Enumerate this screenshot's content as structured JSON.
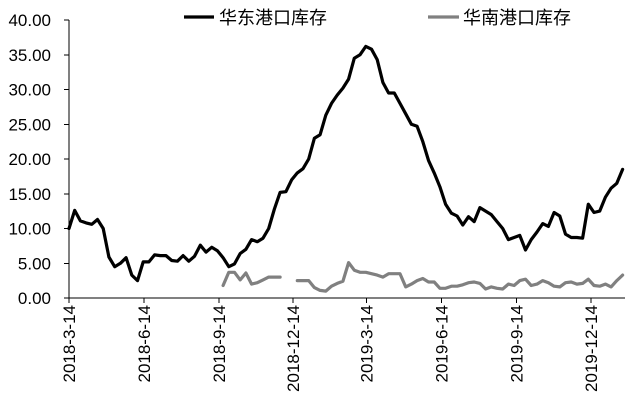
{
  "chart_data": {
    "type": "line",
    "x": [
      "2018-03-14",
      "2018-03-21",
      "2018-03-28",
      "2018-04-04",
      "2018-04-11",
      "2018-04-18",
      "2018-04-25",
      "2018-05-02",
      "2018-05-09",
      "2018-05-16",
      "2018-05-23",
      "2018-05-30",
      "2018-06-06",
      "2018-06-13",
      "2018-06-20",
      "2018-06-27",
      "2018-07-04",
      "2018-07-11",
      "2018-07-18",
      "2018-07-25",
      "2018-08-01",
      "2018-08-08",
      "2018-08-15",
      "2018-08-22",
      "2018-08-29",
      "2018-09-05",
      "2018-09-12",
      "2018-09-19",
      "2018-09-26",
      "2018-10-03",
      "2018-10-10",
      "2018-10-17",
      "2018-10-24",
      "2018-10-31",
      "2018-11-07",
      "2018-11-14",
      "2018-11-21",
      "2018-11-28",
      "2018-12-05",
      "2018-12-12",
      "2018-12-19",
      "2018-12-26",
      "2019-01-02",
      "2019-01-09",
      "2019-01-16",
      "2019-01-23",
      "2019-01-30",
      "2019-02-06",
      "2019-02-13",
      "2019-02-20",
      "2019-02-27",
      "2019-03-06",
      "2019-03-13",
      "2019-03-20",
      "2019-03-27",
      "2019-04-03",
      "2019-04-10",
      "2019-04-17",
      "2019-04-24",
      "2019-05-01",
      "2019-05-08",
      "2019-05-15",
      "2019-05-22",
      "2019-05-29",
      "2019-06-05",
      "2019-06-12",
      "2019-06-19",
      "2019-06-26",
      "2019-07-03",
      "2019-07-10",
      "2019-07-17",
      "2019-07-24",
      "2019-07-31",
      "2019-08-07",
      "2019-08-14",
      "2019-08-21",
      "2019-08-28",
      "2019-09-04",
      "2019-09-11",
      "2019-09-18",
      "2019-09-25",
      "2019-10-02",
      "2019-10-09",
      "2019-10-16",
      "2019-10-23",
      "2019-10-30",
      "2019-11-06",
      "2019-11-13",
      "2019-11-20",
      "2019-11-27",
      "2019-12-04",
      "2019-12-11",
      "2019-12-18",
      "2019-12-25",
      "2020-01-01",
      "2020-01-08",
      "2020-01-15",
      "2020-01-22"
    ],
    "series": [
      {
        "name": "华东港口库存",
        "color": "#000000",
        "values": [
          10.0,
          12.6,
          11.1,
          10.8,
          10.6,
          11.3,
          10.0,
          5.9,
          4.5,
          5.0,
          5.8,
          3.3,
          2.5,
          5.2,
          5.2,
          6.2,
          6.1,
          6.1,
          5.4,
          5.3,
          6.1,
          5.3,
          6.0,
          7.6,
          6.6,
          7.3,
          6.8,
          5.8,
          4.5,
          4.9,
          6.4,
          7.0,
          8.4,
          8.1,
          8.6,
          10.0,
          12.8,
          15.2,
          15.3,
          17.0,
          18.0,
          18.6,
          20.0,
          23.0,
          23.5,
          26.3,
          28.0,
          29.2,
          30.2,
          31.5,
          34.5,
          35.0,
          36.2,
          35.8,
          34.3,
          31.0,
          29.5,
          29.5,
          28.0,
          26.5,
          25.0,
          24.7,
          22.5,
          19.8,
          18.0,
          16.0,
          13.5,
          12.2,
          11.8,
          10.5,
          11.7,
          11.0,
          13.0,
          12.5,
          12.0,
          11.0,
          10.0,
          8.4,
          8.7,
          9.0,
          6.9,
          8.4,
          9.5,
          10.7,
          10.3,
          12.3,
          11.8,
          9.2,
          8.7,
          8.7,
          8.6,
          13.5,
          12.3,
          12.5,
          14.5,
          15.8,
          16.5,
          18.5
        ]
      },
      {
        "name": "华南港口库存",
        "color": "#808080",
        "values": [
          null,
          null,
          null,
          null,
          null,
          null,
          null,
          null,
          null,
          null,
          null,
          null,
          null,
          null,
          null,
          null,
          null,
          null,
          null,
          null,
          null,
          null,
          null,
          null,
          null,
          null,
          null,
          1.8,
          3.7,
          3.7,
          2.6,
          3.6,
          2.0,
          2.2,
          2.6,
          3.0,
          3.0,
          3.0,
          null,
          null,
          2.5,
          2.5,
          2.5,
          1.5,
          1.1,
          1.0,
          1.7,
          2.1,
          2.4,
          5.1,
          4.0,
          3.7,
          3.7,
          3.5,
          3.3,
          3.0,
          3.5,
          3.5,
          3.5,
          1.6,
          2.0,
          2.5,
          2.8,
          2.3,
          2.3,
          1.4,
          1.4,
          1.7,
          1.7,
          1.9,
          2.2,
          2.3,
          2.1,
          1.3,
          1.6,
          1.4,
          1.3,
          2.0,
          1.8,
          2.5,
          2.7,
          1.8,
          2.0,
          2.5,
          2.2,
          1.7,
          1.6,
          2.2,
          2.3,
          2.0,
          2.1,
          2.7,
          1.8,
          1.7,
          2.0,
          1.6,
          2.5,
          3.3
        ]
      }
    ],
    "xticks": [
      "2018-3-14",
      "2018-6-14",
      "2018-9-14",
      "2018-12-14",
      "2019-3-14",
      "2019-6-14",
      "2019-9-14",
      "2019-12-14"
    ],
    "yticks": [
      "0.00",
      "5.00",
      "10.00",
      "15.00",
      "20.00",
      "25.00",
      "30.00",
      "35.00",
      "40.00"
    ],
    "xlim": [
      "2018-03-14",
      "2020-01-25"
    ],
    "ylim": [
      0,
      40
    ],
    "grid": false,
    "legend": "top"
  }
}
